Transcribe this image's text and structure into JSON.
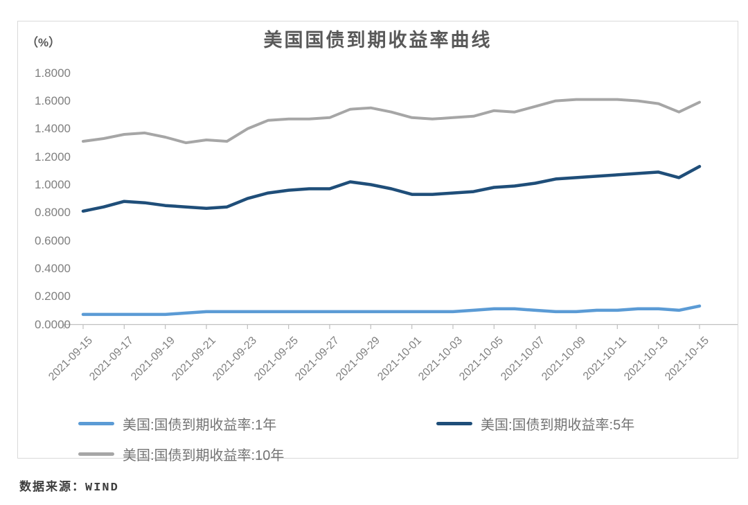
{
  "chart": {
    "title": "美国国债到期收益率曲线",
    "unit_label": "（%）"
  },
  "source": {
    "text": "数据来源：WIND"
  },
  "colors": {
    "series_1y": "#5B9BD5",
    "series_5y": "#1F4E79",
    "series_10y": "#A6A6A6",
    "title_text": "#595959",
    "axis_text": "#7F7F7F",
    "legend_text": "#737373",
    "axis_line": "#BFBFBF",
    "chart_border": "#D9D9D9",
    "background": "#FFFFFF"
  },
  "chart_data": {
    "type": "line",
    "title": "美国国债到期收益率曲线",
    "ylabel": "（%）",
    "ylim": [
      0.0,
      1.8
    ],
    "ytick_step": 0.2,
    "ytick_labels": [
      "1.8000",
      "1.6000",
      "1.4000",
      "1.2000",
      "1.0000",
      "0.8000",
      "0.6000",
      "0.4000",
      "0.2000",
      "0.0000"
    ],
    "grid": false,
    "legend_position": "bottom",
    "x": [
      "2021-09-15",
      "2021-09-16",
      "2021-09-17",
      "2021-09-18",
      "2021-09-19",
      "2021-09-20",
      "2021-09-21",
      "2021-09-22",
      "2021-09-23",
      "2021-09-24",
      "2021-09-25",
      "2021-09-26",
      "2021-09-27",
      "2021-09-28",
      "2021-09-29",
      "2021-09-30",
      "2021-10-01",
      "2021-10-02",
      "2021-10-03",
      "2021-10-04",
      "2021-10-05",
      "2021-10-06",
      "2021-10-07",
      "2021-10-08",
      "2021-10-09",
      "2021-10-10",
      "2021-10-11",
      "2021-10-12",
      "2021-10-13",
      "2021-10-14",
      "2021-10-15"
    ],
    "xtick_labels": [
      "2021-09-15",
      "2021-09-17",
      "2021-09-19",
      "2021-09-21",
      "2021-09-23",
      "2021-09-25",
      "2021-09-27",
      "2021-09-29",
      "2021-10-01",
      "2021-10-03",
      "2021-10-05",
      "2021-10-07",
      "2021-10-09",
      "2021-10-11",
      "2021-10-13",
      "2021-10-15"
    ],
    "series": [
      {
        "name": "美国:国债到期收益率:1年",
        "color": "#5B9BD5",
        "values": [
          0.07,
          0.07,
          0.07,
          0.07,
          0.07,
          0.08,
          0.09,
          0.09,
          0.09,
          0.09,
          0.09,
          0.09,
          0.09,
          0.09,
          0.09,
          0.09,
          0.09,
          0.09,
          0.09,
          0.1,
          0.11,
          0.11,
          0.1,
          0.09,
          0.09,
          0.1,
          0.1,
          0.11,
          0.11,
          0.1,
          0.13
        ]
      },
      {
        "name": "美国:国债到期收益率:5年",
        "color": "#1F4E79",
        "values": [
          0.81,
          0.84,
          0.88,
          0.87,
          0.85,
          0.84,
          0.83,
          0.84,
          0.9,
          0.94,
          0.96,
          0.97,
          0.97,
          1.02,
          1.0,
          0.97,
          0.93,
          0.93,
          0.94,
          0.95,
          0.98,
          0.99,
          1.01,
          1.04,
          1.05,
          1.06,
          1.07,
          1.08,
          1.09,
          1.05,
          1.13
        ]
      },
      {
        "name": "美国:国债到期收益率:10年",
        "color": "#A6A6A6",
        "values": [
          1.31,
          1.33,
          1.36,
          1.37,
          1.34,
          1.3,
          1.32,
          1.31,
          1.4,
          1.46,
          1.47,
          1.47,
          1.48,
          1.54,
          1.55,
          1.52,
          1.48,
          1.47,
          1.48,
          1.49,
          1.53,
          1.52,
          1.56,
          1.6,
          1.61,
          1.61,
          1.61,
          1.6,
          1.58,
          1.52,
          1.59
        ]
      }
    ]
  }
}
